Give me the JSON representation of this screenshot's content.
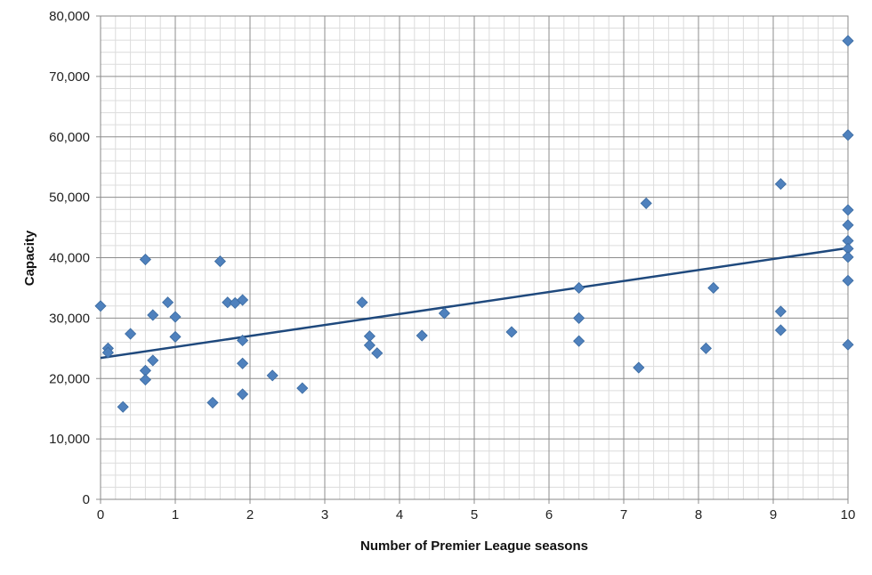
{
  "chart_data": {
    "type": "scatter",
    "title": "",
    "xlabel": "Number of Premier League seasons",
    "ylabel": "Capacity",
    "xlim": [
      0,
      10
    ],
    "ylim": [
      0,
      80000
    ],
    "grid": true,
    "legend": "none",
    "x_ticks": [
      0,
      1,
      2,
      3,
      4,
      5,
      6,
      7,
      8,
      9,
      10
    ],
    "x_tick_labels": [
      "0",
      "1",
      "2",
      "3",
      "4",
      "5",
      "6",
      "7",
      "8",
      "9",
      "10"
    ],
    "y_ticks": [
      0,
      10000,
      20000,
      30000,
      40000,
      50000,
      60000,
      70000,
      80000
    ],
    "y_tick_labels": [
      "0",
      "10,000",
      "20,000",
      "30,000",
      "40,000",
      "50,000",
      "60,000",
      "70,000",
      "80,000"
    ],
    "series": [
      {
        "marker_color": "#4f81bd",
        "points": [
          {
            "x": 0.0,
            "y": 32000
          },
          {
            "x": 0.1,
            "y": 25000
          },
          {
            "x": 0.1,
            "y": 24300
          },
          {
            "x": 0.3,
            "y": 15300
          },
          {
            "x": 0.4,
            "y": 27400
          },
          {
            "x": 0.6,
            "y": 39700
          },
          {
            "x": 0.6,
            "y": 21300
          },
          {
            "x": 0.6,
            "y": 19800
          },
          {
            "x": 0.7,
            "y": 30500
          },
          {
            "x": 0.7,
            "y": 23000
          },
          {
            "x": 0.9,
            "y": 32600
          },
          {
            "x": 1.0,
            "y": 30200
          },
          {
            "x": 1.0,
            "y": 26900
          },
          {
            "x": 1.5,
            "y": 16000
          },
          {
            "x": 1.6,
            "y": 39400
          },
          {
            "x": 1.7,
            "y": 32600
          },
          {
            "x": 1.8,
            "y": 32500
          },
          {
            "x": 1.9,
            "y": 33000
          },
          {
            "x": 1.9,
            "y": 26300
          },
          {
            "x": 1.9,
            "y": 22500
          },
          {
            "x": 1.9,
            "y": 17400
          },
          {
            "x": 2.3,
            "y": 20500
          },
          {
            "x": 2.7,
            "y": 18400
          },
          {
            "x": 3.5,
            "y": 32600
          },
          {
            "x": 3.6,
            "y": 27000
          },
          {
            "x": 3.6,
            "y": 25500
          },
          {
            "x": 3.7,
            "y": 24200
          },
          {
            "x": 4.3,
            "y": 27100
          },
          {
            "x": 4.6,
            "y": 30800
          },
          {
            "x": 5.5,
            "y": 27700
          },
          {
            "x": 6.4,
            "y": 35000
          },
          {
            "x": 6.4,
            "y": 30000
          },
          {
            "x": 6.4,
            "y": 26200
          },
          {
            "x": 7.2,
            "y": 21800
          },
          {
            "x": 7.3,
            "y": 49000
          },
          {
            "x": 8.1,
            "y": 25000
          },
          {
            "x": 8.2,
            "y": 35000
          },
          {
            "x": 9.1,
            "y": 52200
          },
          {
            "x": 9.1,
            "y": 31100
          },
          {
            "x": 9.1,
            "y": 28000
          },
          {
            "x": 10.0,
            "y": 75900
          },
          {
            "x": 10.0,
            "y": 60300
          },
          {
            "x": 10.0,
            "y": 47900
          },
          {
            "x": 10.0,
            "y": 45400
          },
          {
            "x": 10.0,
            "y": 42800
          },
          {
            "x": 10.0,
            "y": 41500
          },
          {
            "x": 10.0,
            "y": 40100
          },
          {
            "x": 10.0,
            "y": 36200
          },
          {
            "x": 10.0,
            "y": 25600
          }
        ]
      }
    ],
    "trendline": {
      "type": "linear",
      "color": "#1f497d",
      "points": [
        {
          "x": 0,
          "y": 23400
        },
        {
          "x": 10,
          "y": 41600
        }
      ]
    }
  }
}
